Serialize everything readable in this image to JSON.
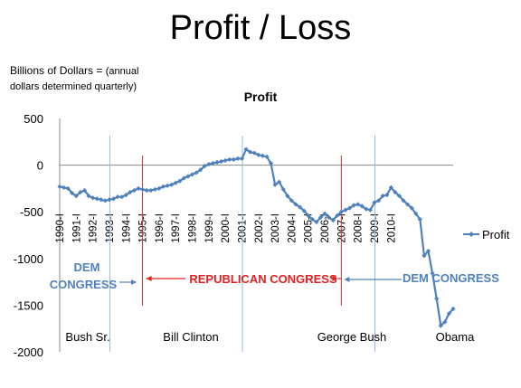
{
  "slide": {
    "title": "Profit / Loss",
    "units_line1_a": "Billions of Dollars = ",
    "units_line1_b": "(annual",
    "units_line2": "dollars determined quarterly)"
  },
  "chart_data": {
    "type": "line",
    "title": "Profit",
    "xlabel": "",
    "ylabel": "",
    "ylim": [
      -2000,
      500
    ],
    "y_ticks": [
      500,
      0,
      -500,
      -1000,
      -1500,
      -2000
    ],
    "x_ticks": [
      "1990-I",
      "1991-I",
      "1992-I",
      "1993-I",
      "1994-I",
      "1995-I",
      "1996-I",
      "1997-I",
      "1998-I",
      "1999-I",
      "2000-I",
      "2001-I",
      "2002-I",
      "2003-I",
      "2004-I",
      "2005-I",
      "2006-I",
      "2007-I",
      "2008-I",
      "2009-I",
      "2010-I"
    ],
    "legend": {
      "position": "right",
      "label": "Profit",
      "color": "#4f81bd"
    },
    "series": [
      {
        "name": "Profit",
        "color": "#4f81bd",
        "values": [
          -230,
          -240,
          -250,
          -300,
          -330,
          -290,
          -270,
          -330,
          -350,
          -360,
          -370,
          -380,
          -370,
          -360,
          -340,
          -340,
          -320,
          -290,
          -270,
          -250,
          -260,
          -270,
          -270,
          -260,
          -250,
          -230,
          -220,
          -210,
          -190,
          -170,
          -140,
          -120,
          -100,
          -80,
          -50,
          -10,
          10,
          20,
          30,
          40,
          50,
          60,
          60,
          70,
          70,
          170,
          140,
          130,
          110,
          100,
          90,
          20,
          -210,
          -180,
          -260,
          -330,
          -380,
          -420,
          -450,
          -490,
          -540,
          -580,
          -610,
          -560,
          -520,
          -560,
          -590,
          -540,
          -500,
          -480,
          -460,
          -430,
          -420,
          -440,
          -470,
          -480,
          -400,
          -380,
          -330,
          -320,
          -240,
          -290,
          -330,
          -380,
          -420,
          -460,
          -520,
          -580,
          -970,
          -920,
          -1160,
          -1430,
          -1720,
          -1680,
          -1590,
          -1540
        ]
      }
    ],
    "annotations": {
      "dem_congress_left_1": "DEM",
      "dem_congress_left_2": "CONGRESS",
      "republican_congress": "REPUBLICAN CONGRESS",
      "dem_congress_right": "DEM CONGRESS",
      "presidents": [
        "Bush Sr.",
        "Bill Clinton",
        "George Bush",
        "Obama"
      ],
      "president_lines_at": [
        "1993-I",
        "2001-I",
        "2009-I"
      ],
      "congress_lines_at": [
        "1995-I",
        "2007-I"
      ],
      "colors": {
        "dem": "#4f81bd",
        "republican": "#e02020",
        "president_line": "#9ab8e0",
        "congress_line": "#d9302c"
      }
    }
  }
}
